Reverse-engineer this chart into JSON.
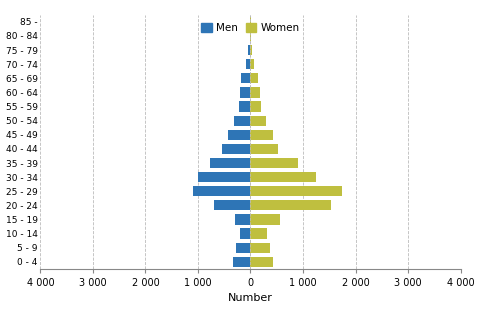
{
  "age_groups": [
    "0 - 4",
    "5 - 9",
    "10 - 14",
    "15 - 19",
    "20 - 24",
    "25 - 29",
    "30 - 34",
    "35 - 39",
    "40 - 44",
    "45 - 49",
    "50 - 54",
    "55 - 59",
    "60 - 64",
    "65 - 69",
    "70 - 74",
    "75 - 79",
    "80 - 84",
    "85 -"
  ],
  "men": [
    330,
    280,
    200,
    300,
    700,
    1100,
    1000,
    780,
    550,
    420,
    320,
    220,
    200,
    180,
    80,
    50,
    5,
    2
  ],
  "women": [
    420,
    370,
    310,
    560,
    1530,
    1750,
    1250,
    900,
    530,
    430,
    300,
    200,
    180,
    150,
    70,
    30,
    5,
    2
  ],
  "men_color": "#2E75B6",
  "women_color": "#BFBF3F",
  "xlim": 4000,
  "xlabel": "Number",
  "grid_color": "#BBBBBB",
  "legend_men": "Men",
  "legend_women": "Women",
  "tick_labels": [
    "4 000",
    "3 000",
    "2 000",
    "1 000",
    "0",
    "1 000",
    "2 000",
    "3 000",
    "4 000"
  ]
}
